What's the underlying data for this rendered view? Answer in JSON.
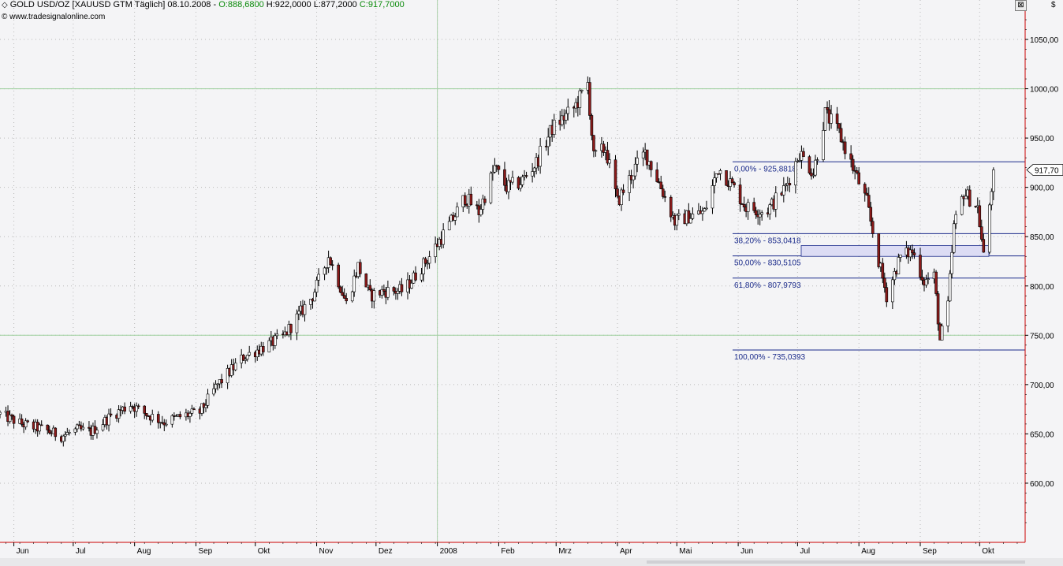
{
  "header": {
    "icon": "diamond-icon",
    "instrument": "GOLD USD/OZ [XAUUSD GTM  Täglich]",
    "date": "08.10.2008",
    "open": "O:888,6800",
    "high": "H:922,0000",
    "low": "L:877,2000",
    "close": "C:917,7000",
    "copyright": "© www.tradesignalonline.com",
    "close_button": "⊠",
    "currency": "$"
  },
  "colors": {
    "background": "#f4f4f6",
    "grid_dots": "#b8b8b8",
    "hgrid_line": "#9ccf9c",
    "vgrid_line": "#a8d0a8",
    "fib_line": "#1a2a8a",
    "candle_up": "#ffffff",
    "candle_down": "#8b1a1a",
    "axis_red": "#cc0000",
    "zone_fill": "#dcdcf4"
  },
  "chart_data": {
    "type": "candlestick",
    "title": "GOLD USD/OZ [XAUUSD GTM Täglich]",
    "ylim": [
      540,
      1090
    ],
    "y_ticks": [
      600,
      650,
      700,
      750,
      800,
      850,
      900,
      950,
      1000,
      1050
    ],
    "y_tick_labels": [
      "600,00",
      "650,00",
      "700,00",
      "750,00",
      "800,00",
      "850,00",
      "900,00",
      "950,00",
      "1000,00",
      "1050,00"
    ],
    "last_price_label": "917,70",
    "last_price": 917.7,
    "x_months": [
      "Jun",
      "Jul",
      "Aug",
      "Sep",
      "Okt",
      "Nov",
      "Dez",
      "2008",
      "Feb",
      "Mrz",
      "Apr",
      "Mai",
      "Jun",
      "Jul",
      "Aug",
      "Sep",
      "Okt"
    ],
    "year_boundary": "2008",
    "highlighted_y_levels": [
      1000,
      750
    ],
    "fibonacci_levels": [
      {
        "label": "0,00% - 925,8818",
        "value": 925.8818
      },
      {
        "label": "38,20% - 853,0418",
        "value": 853.0418
      },
      {
        "label": "50,00% - 830,5105",
        "value": 830.5105
      },
      {
        "label": "61,80% - 807,9793",
        "value": 807.9793
      },
      {
        "label": "100,00% - 735,0393",
        "value": 735.0393
      }
    ],
    "zone": {
      "low": 830,
      "high": 841
    },
    "price_path_anchors": [
      {
        "d": "2007-05-25",
        "p": 670
      },
      {
        "d": "2007-06-05",
        "p": 660
      },
      {
        "d": "2007-06-15",
        "p": 655
      },
      {
        "d": "2007-06-25",
        "p": 648
      },
      {
        "d": "2007-07-03",
        "p": 654
      },
      {
        "d": "2007-07-10",
        "p": 652
      },
      {
        "d": "2007-07-20",
        "p": 668
      },
      {
        "d": "2007-07-30",
        "p": 680
      },
      {
        "d": "2007-08-05",
        "p": 672
      },
      {
        "d": "2007-08-16",
        "p": 662
      },
      {
        "d": "2007-08-25",
        "p": 668
      },
      {
        "d": "2007-09-03",
        "p": 672
      },
      {
        "d": "2007-09-12",
        "p": 700
      },
      {
        "d": "2007-09-25",
        "p": 728
      },
      {
        "d": "2007-10-02",
        "p": 735
      },
      {
        "d": "2007-10-15",
        "p": 748
      },
      {
        "d": "2007-10-30",
        "p": 790
      },
      {
        "d": "2007-11-07",
        "p": 830
      },
      {
        "d": "2007-11-12",
        "p": 805
      },
      {
        "d": "2007-11-16",
        "p": 782
      },
      {
        "d": "2007-11-22",
        "p": 820
      },
      {
        "d": "2007-11-28",
        "p": 790
      },
      {
        "d": "2007-12-05",
        "p": 795
      },
      {
        "d": "2007-12-15",
        "p": 795
      },
      {
        "d": "2007-12-28",
        "p": 830
      },
      {
        "d": "2008-01-08",
        "p": 865
      },
      {
        "d": "2008-01-15",
        "p": 890
      },
      {
        "d": "2008-01-22",
        "p": 875
      },
      {
        "d": "2008-01-30",
        "p": 920
      },
      {
        "d": "2008-02-05",
        "p": 900
      },
      {
        "d": "2008-02-12",
        "p": 905
      },
      {
        "d": "2008-02-20",
        "p": 925
      },
      {
        "d": "2008-02-28",
        "p": 960
      },
      {
        "d": "2008-03-10",
        "p": 980
      },
      {
        "d": "2008-03-17",
        "p": 1005
      },
      {
        "d": "2008-03-20",
        "p": 930
      },
      {
        "d": "2008-03-26",
        "p": 940
      },
      {
        "d": "2008-04-01",
        "p": 885
      },
      {
        "d": "2008-04-10",
        "p": 920
      },
      {
        "d": "2008-04-15",
        "p": 935
      },
      {
        "d": "2008-04-22",
        "p": 905
      },
      {
        "d": "2008-04-30",
        "p": 865
      },
      {
        "d": "2008-05-06",
        "p": 870
      },
      {
        "d": "2008-05-15",
        "p": 875
      },
      {
        "d": "2008-05-22",
        "p": 920
      },
      {
        "d": "2008-05-28",
        "p": 905
      },
      {
        "d": "2008-06-05",
        "p": 880
      },
      {
        "d": "2008-06-15",
        "p": 875
      },
      {
        "d": "2008-06-25",
        "p": 900
      },
      {
        "d": "2008-07-02",
        "p": 935
      },
      {
        "d": "2008-07-09",
        "p": 915
      },
      {
        "d": "2008-07-15",
        "p": 975
      },
      {
        "d": "2008-07-22",
        "p": 955
      },
      {
        "d": "2008-07-30",
        "p": 915
      },
      {
        "d": "2008-08-05",
        "p": 885
      },
      {
        "d": "2008-08-11",
        "p": 825
      },
      {
        "d": "2008-08-15",
        "p": 790
      },
      {
        "d": "2008-08-22",
        "p": 830
      },
      {
        "d": "2008-08-28",
        "p": 835
      },
      {
        "d": "2008-09-03",
        "p": 805
      },
      {
        "d": "2008-09-08",
        "p": 810
      },
      {
        "d": "2008-09-11",
        "p": 745
      },
      {
        "d": "2008-09-15",
        "p": 780
      },
      {
        "d": "2008-09-18",
        "p": 860
      },
      {
        "d": "2008-09-23",
        "p": 895
      },
      {
        "d": "2008-09-30",
        "p": 880
      },
      {
        "d": "2008-10-03",
        "p": 830
      },
      {
        "d": "2008-10-08",
        "p": 917.7
      }
    ]
  }
}
